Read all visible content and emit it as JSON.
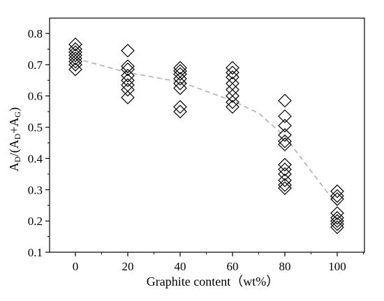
{
  "chart_data": {
    "type": "scatter",
    "title": "",
    "xlabel": "Graphite content（wt%）",
    "ylabel": {
      "prefix": "A",
      "sub1": "D",
      "mid1": "/(A",
      "sub2": "D",
      "mid2": "+A",
      "sub3": "G",
      "suffix": ")"
    },
    "xlim": [
      -10,
      110
    ],
    "ylim": [
      0.1,
      0.85
    ],
    "xticks": [
      0,
      20,
      40,
      60,
      80,
      100
    ],
    "yticks": [
      0.1,
      0.2,
      0.3,
      0.4,
      0.5,
      0.6,
      0.7,
      0.8
    ],
    "xtick_labels": [
      "0",
      "20",
      "40",
      "60",
      "80",
      "100"
    ],
    "ytick_labels": [
      "0.1",
      "0.2",
      "0.3",
      "0.4",
      "0.5",
      "0.6",
      "0.7",
      "0.8"
    ],
    "marker": "open-diamond",
    "marker_color": "#000000",
    "points": [
      {
        "x": 0,
        "y": [
          0.765,
          0.75,
          0.74,
          0.73,
          0.72,
          0.71,
          0.7,
          0.685
        ]
      },
      {
        "x": 20,
        "y": [
          0.745,
          0.695,
          0.685,
          0.665,
          0.65,
          0.635,
          0.62,
          0.595
        ]
      },
      {
        "x": 40,
        "y": [
          0.69,
          0.68,
          0.67,
          0.655,
          0.64,
          0.625,
          0.565,
          0.55
        ]
      },
      {
        "x": 60,
        "y": [
          0.69,
          0.675,
          0.66,
          0.64,
          0.62,
          0.6,
          0.58,
          0.565
        ]
      },
      {
        "x": 80,
        "y": [
          0.585,
          0.535,
          0.505,
          0.475,
          0.455,
          0.445,
          0.38,
          0.365,
          0.35,
          0.33,
          0.315,
          0.305
        ]
      },
      {
        "x": 100,
        "y": [
          0.295,
          0.28,
          0.27,
          0.225,
          0.21,
          0.2,
          0.19,
          0.18
        ]
      }
    ],
    "trend_line": {
      "style": "dashed",
      "color": "#b0b0b0",
      "x": [
        0,
        20,
        40,
        60,
        70,
        80,
        90,
        100
      ],
      "y": [
        0.72,
        0.675,
        0.645,
        0.585,
        0.545,
        0.47,
        0.36,
        0.25
      ]
    },
    "grid": false,
    "legend": "none"
  }
}
